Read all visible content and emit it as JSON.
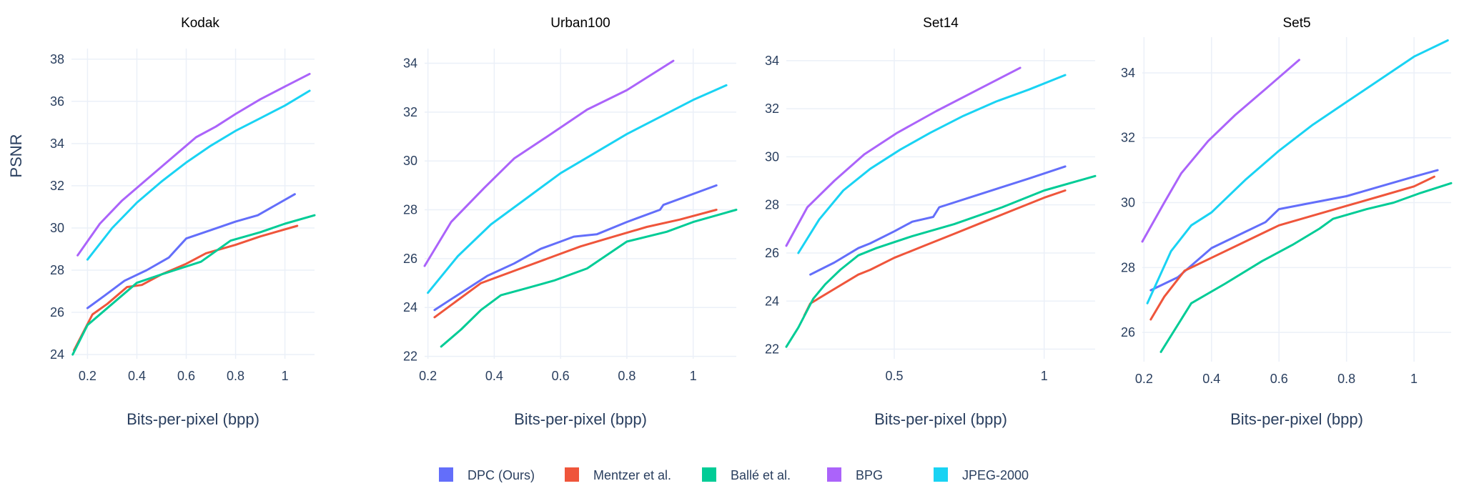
{
  "figure": {
    "y_axis_title": "PSNR",
    "x_axis_title": "Bits-per-pixel (bpp)"
  },
  "legend": [
    {
      "name": "DPC (Ours)",
      "color": "#636efa"
    },
    {
      "name": "Mentzer et al.",
      "color": "#ef553b"
    },
    {
      "name": "Ballé et al.",
      "color": "#00cc96"
    },
    {
      "name": "BPG",
      "color": "#ab63fa"
    },
    {
      "name": "JPEG-2000",
      "color": "#19d3f3"
    }
  ],
  "chart_data": [
    {
      "type": "line",
      "title": "Kodak",
      "xlabel": "Bits-per-pixel (bpp)",
      "ylabel": "PSNR",
      "xlim": [
        0.135,
        1.12
      ],
      "ylim": [
        23.8,
        38.5
      ],
      "xticks": [
        0.2,
        0.4,
        0.6,
        0.8,
        1
      ],
      "xtick_labels": [
        "0.2",
        "0.4",
        "0.6",
        "0.8",
        "1"
      ],
      "yticks": [
        24,
        26,
        28,
        30,
        32,
        34,
        36,
        38
      ],
      "ytick_labels": [
        "24",
        "26",
        "28",
        "30",
        "32",
        "34",
        "36",
        "38"
      ],
      "series": [
        {
          "name": "DPC (Ours)",
          "x": [
            0.2,
            0.27,
            0.35,
            0.44,
            0.53,
            0.6,
            0.7,
            0.8,
            0.89,
            1.04
          ],
          "y": [
            26.2,
            26.8,
            27.5,
            28.0,
            28.6,
            29.5,
            29.9,
            30.3,
            30.6,
            31.6
          ]
        },
        {
          "name": "Mentzer et al.",
          "x": [
            0.145,
            0.22,
            0.28,
            0.36,
            0.42,
            0.5,
            0.6,
            0.68,
            0.8,
            0.9,
            1.05
          ],
          "y": [
            24.2,
            25.9,
            26.4,
            27.2,
            27.3,
            27.8,
            28.3,
            28.8,
            29.2,
            29.6,
            30.1
          ]
        },
        {
          "name": "Ballé et al.",
          "x": [
            0.14,
            0.2,
            0.3,
            0.4,
            0.5,
            0.66,
            0.78,
            0.9,
            1.0,
            1.12
          ],
          "y": [
            24.0,
            25.4,
            26.4,
            27.4,
            27.8,
            28.4,
            29.4,
            29.8,
            30.2,
            30.6
          ]
        },
        {
          "name": "BPG",
          "x": [
            0.16,
            0.25,
            0.34,
            0.44,
            0.54,
            0.64,
            0.72,
            0.8,
            0.9,
            1.0,
            1.1
          ],
          "y": [
            28.7,
            30.2,
            31.3,
            32.3,
            33.3,
            34.3,
            34.8,
            35.4,
            36.1,
            36.7,
            37.3
          ]
        },
        {
          "name": "JPEG-2000",
          "x": [
            0.2,
            0.3,
            0.4,
            0.5,
            0.6,
            0.7,
            0.8,
            0.9,
            1.0,
            1.1
          ],
          "y": [
            28.5,
            30.0,
            31.2,
            32.2,
            33.1,
            33.9,
            34.6,
            35.2,
            35.8,
            36.5
          ]
        }
      ]
    },
    {
      "type": "line",
      "title": "Urban100",
      "xlabel": "Bits-per-pixel (bpp)",
      "ylabel": "",
      "xlim": [
        0.19,
        1.13
      ],
      "ylim": [
        21.9,
        34.6
      ],
      "xticks": [
        0.2,
        0.4,
        0.6,
        0.8,
        1
      ],
      "xtick_labels": [
        "0.2",
        "0.4",
        "0.6",
        "0.8",
        "1"
      ],
      "yticks": [
        22,
        24,
        26,
        28,
        30,
        32,
        34
      ],
      "ytick_labels": [
        "22",
        "24",
        "26",
        "28",
        "30",
        "32",
        "34"
      ],
      "series": [
        {
          "name": "DPC (Ours)",
          "x": [
            0.22,
            0.3,
            0.38,
            0.46,
            0.54,
            0.6,
            0.64,
            0.71,
            0.8,
            0.9,
            0.91,
            1.07
          ],
          "y": [
            23.9,
            24.6,
            25.3,
            25.8,
            26.4,
            26.7,
            26.9,
            27.0,
            27.5,
            28.0,
            28.2,
            29.0
          ]
        },
        {
          "name": "Mentzer et al.",
          "x": [
            0.22,
            0.28,
            0.36,
            0.46,
            0.56,
            0.66,
            0.76,
            0.86,
            0.96,
            1.07
          ],
          "y": [
            23.6,
            24.2,
            25.0,
            25.5,
            26.0,
            26.5,
            26.9,
            27.3,
            27.6,
            28.0
          ]
        },
        {
          "name": "Ballé et al.",
          "x": [
            0.24,
            0.3,
            0.36,
            0.42,
            0.5,
            0.58,
            0.68,
            0.8,
            0.92,
            1.0,
            1.13
          ],
          "y": [
            22.4,
            23.1,
            23.9,
            24.5,
            24.8,
            25.1,
            25.6,
            26.7,
            27.1,
            27.5,
            28.0
          ]
        },
        {
          "name": "BPG",
          "x": [
            0.19,
            0.27,
            0.37,
            0.46,
            0.56,
            0.68,
            0.8,
            0.94
          ],
          "y": [
            25.7,
            27.5,
            28.9,
            30.1,
            31.0,
            32.1,
            32.9,
            34.1
          ]
        },
        {
          "name": "JPEG-2000",
          "x": [
            0.2,
            0.29,
            0.39,
            0.5,
            0.6,
            0.7,
            0.8,
            0.9,
            1.0,
            1.1
          ],
          "y": [
            24.6,
            26.1,
            27.4,
            28.5,
            29.5,
            30.3,
            31.1,
            31.8,
            32.5,
            33.1
          ]
        }
      ]
    },
    {
      "type": "line",
      "title": "Set14",
      "xlabel": "Bits-per-pixel (bpp)",
      "ylabel": "",
      "xlim": [
        0.14,
        1.17
      ],
      "ylim": [
        21.6,
        34.5
      ],
      "xticks": [
        0.5,
        1
      ],
      "xtick_labels": [
        "0.5",
        "1"
      ],
      "yticks": [
        22,
        24,
        26,
        28,
        30,
        32,
        34
      ],
      "ytick_labels": [
        "22",
        "24",
        "26",
        "28",
        "30",
        "32",
        "34"
      ],
      "series": [
        {
          "name": "DPC (Ours)",
          "x": [
            0.22,
            0.3,
            0.38,
            0.42,
            0.5,
            0.56,
            0.63,
            0.65,
            0.75,
            0.85,
            0.95,
            1.07
          ],
          "y": [
            25.1,
            25.6,
            26.2,
            26.4,
            26.9,
            27.3,
            27.5,
            27.9,
            28.3,
            28.7,
            29.1,
            29.6
          ]
        },
        {
          "name": "Mentzer et al.",
          "x": [
            0.2,
            0.22,
            0.3,
            0.38,
            0.42,
            0.5,
            0.6,
            0.7,
            0.8,
            0.9,
            1.0,
            1.07
          ],
          "y": [
            23.4,
            23.9,
            24.5,
            25.1,
            25.3,
            25.8,
            26.3,
            26.8,
            27.3,
            27.8,
            28.3,
            28.6
          ]
        },
        {
          "name": "Ballé et al.",
          "x": [
            0.14,
            0.18,
            0.23,
            0.27,
            0.32,
            0.38,
            0.44,
            0.56,
            0.7,
            0.86,
            1.0,
            1.17
          ],
          "y": [
            22.1,
            22.9,
            24.1,
            24.7,
            25.3,
            25.9,
            26.2,
            26.7,
            27.2,
            27.9,
            28.6,
            29.2
          ]
        },
        {
          "name": "BPG",
          "x": [
            0.14,
            0.21,
            0.3,
            0.4,
            0.51,
            0.64,
            0.78,
            0.92
          ],
          "y": [
            26.3,
            27.9,
            29.0,
            30.1,
            31.0,
            31.9,
            32.8,
            33.7
          ]
        },
        {
          "name": "JPEG-2000",
          "x": [
            0.18,
            0.25,
            0.33,
            0.42,
            0.52,
            0.62,
            0.73,
            0.84,
            0.95,
            1.07
          ],
          "y": [
            26.0,
            27.4,
            28.6,
            29.5,
            30.3,
            31.0,
            31.7,
            32.3,
            32.8,
            33.4
          ]
        }
      ]
    },
    {
      "type": "line",
      "title": "Set5",
      "xlabel": "Bits-per-pixel (bpp)",
      "ylabel": "",
      "xlim": [
        0.195,
        1.11
      ],
      "ylim": [
        25.1,
        35.1
      ],
      "xticks": [
        0.2,
        0.4,
        0.6,
        0.8,
        1
      ],
      "xtick_labels": [
        "0.2",
        "0.4",
        "0.6",
        "0.8",
        "1"
      ],
      "yticks": [
        26,
        28,
        30,
        32,
        34
      ],
      "ytick_labels": [
        "26",
        "28",
        "30",
        "32",
        "34"
      ],
      "series": [
        {
          "name": "DPC (Ours)",
          "x": [
            0.22,
            0.3,
            0.4,
            0.5,
            0.56,
            0.6,
            0.7,
            0.8,
            0.9,
            1.0,
            1.07
          ],
          "y": [
            27.3,
            27.7,
            28.6,
            29.1,
            29.4,
            29.8,
            30.0,
            30.2,
            30.5,
            30.8,
            31.0
          ]
        },
        {
          "name": "Mentzer et al.",
          "x": [
            0.22,
            0.26,
            0.32,
            0.4,
            0.5,
            0.6,
            0.7,
            0.8,
            0.9,
            1.0,
            1.06
          ],
          "y": [
            26.4,
            27.1,
            27.9,
            28.3,
            28.8,
            29.3,
            29.6,
            29.9,
            30.2,
            30.5,
            30.8
          ]
        },
        {
          "name": "Ballé et al.",
          "x": [
            0.25,
            0.34,
            0.44,
            0.55,
            0.64,
            0.72,
            0.76,
            0.86,
            0.94,
            1.02,
            1.11
          ],
          "y": [
            25.4,
            26.9,
            27.5,
            28.2,
            28.7,
            29.2,
            29.5,
            29.8,
            30.0,
            30.3,
            30.6
          ]
        },
        {
          "name": "BPG",
          "x": [
            0.195,
            0.26,
            0.31,
            0.39,
            0.47,
            0.56,
            0.66
          ],
          "y": [
            28.8,
            30.0,
            30.9,
            31.9,
            32.7,
            33.5,
            34.4
          ]
        },
        {
          "name": "JPEG-2000",
          "x": [
            0.21,
            0.28,
            0.34,
            0.4,
            0.5,
            0.6,
            0.7,
            0.8,
            0.9,
            1.0,
            1.1
          ],
          "y": [
            26.9,
            28.5,
            29.3,
            29.7,
            30.7,
            31.6,
            32.4,
            33.1,
            33.8,
            34.5,
            35.0
          ]
        }
      ]
    }
  ]
}
